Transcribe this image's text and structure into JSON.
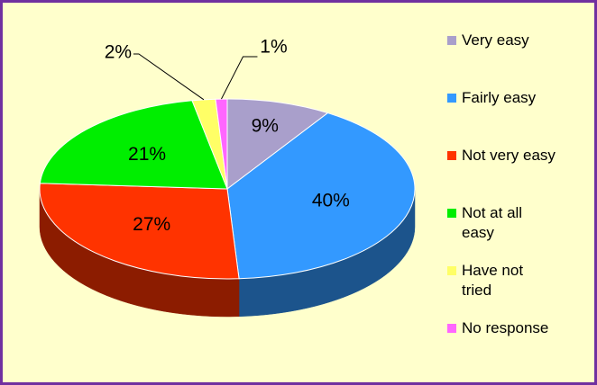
{
  "chart_data": {
    "type": "pie3d",
    "categories": [
      "Very easy",
      "Fairly easy",
      "Not very easy",
      "Not at all easy",
      "Have not tried",
      "No response"
    ],
    "values": [
      9,
      40,
      27,
      21,
      2,
      1
    ],
    "value_labels": [
      "9%",
      "40%",
      "27%",
      "21%",
      "2%",
      "1%"
    ],
    "colors": [
      "#a99fcb",
      "#3399ff",
      "#ff3300",
      "#00ee00",
      "#ffff66",
      "#ff66ff"
    ],
    "legend": "right"
  }
}
